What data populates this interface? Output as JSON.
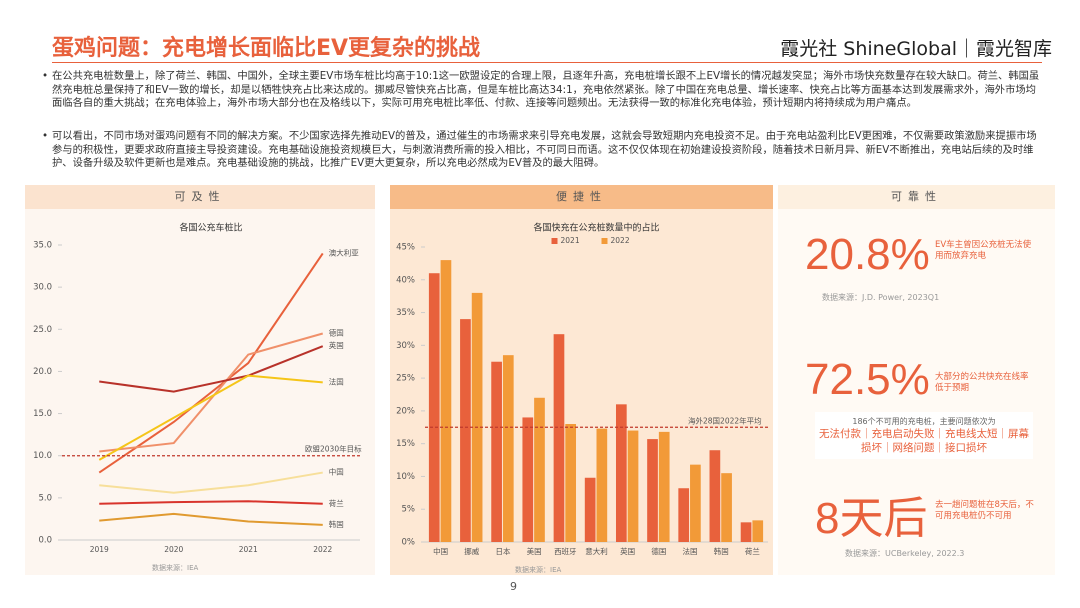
{
  "header": {
    "title": "蛋鸡问题：充电增长面临比EV更复杂的挑战",
    "brand": "霞光社 ShineGlobal｜霞光智库"
  },
  "bullets": [
    "在公共充电桩数量上，除了荷兰、韩国、中国外，全球主要EV市场车桩比均高于10:1这一欧盟设定的合理上限，且逐年升高，充电桩增长跟不上EV增长的情况越发突显；海外市场快充数量存在较大缺口。荷兰、韩国虽然充电桩总量保持了和EV一致的增长，却是以牺牲快充占比来达成的。挪威尽管快充占比高，但是车桩比高达34:1，充电依然紧张。除了中国在充电总量、增长速率、快充占比等方面基本达到发展需求外，海外市场均面临各自的重大挑战；在充电体验上，海外市场大部分也在及格线以下，实际可用充电桩比率低、付款、连接等问题频出。无法获得一致的标准化充电体验，预计短期内将持续成为用户痛点。",
    "可以看出，不同市场对蛋鸡问题有不同的解决方案。不少国家选择先推动EV的普及，通过催生的市场需求来引导充电发展，这就会导致短期内充电投资不足。由于充电站盈利比EV更困难，不仅需要政策激励来提振市场参与的积极性，更要求政府直接主导投资建设。充电基础设施投资规模巨大，与刺激消费所需的投入相比，不可同日而语。这不仅仅体现在初始建设投资阶段，随着技术日新月异、新EV不断推出，充电站后续的及时维护、设备升级及软件更新也是难点。充电基础设施的挑战，比推广EV更大更复杂，所以充电必然成为EV普及的最大阻碍。"
  ],
  "panels": [
    "可及性",
    "便捷性",
    "可靠性"
  ],
  "stats": [
    {
      "value": "20.8%",
      "text": "EV车主曾因公充桩无法使用而放弃充电",
      "source": "数据来源：J.D. Power, 2023Q1"
    },
    {
      "value": "72.5%",
      "text": "大部分的公共快充在线率低于预期",
      "note": "186个不可用的充电桩，主要问题依次为",
      "issues": "无法付款｜充电启动失败｜充电线太短｜屏幕损坏｜网络问题｜接口损坏"
    },
    {
      "value": "8天后",
      "text": "去一趟问题桩在8天后，不可用充电桩仍不可用",
      "source": "数据来源：UCBerkeley, 2022.3"
    }
  ],
  "page": "9",
  "chart_data": [
    {
      "type": "line",
      "title": "各国公充车桩比",
      "categories": [
        "2019",
        "2020",
        "2021",
        "2022"
      ],
      "ylim": [
        0,
        35
      ],
      "yticks": [
        {
          "value": 0,
          "label": "0.0"
        },
        {
          "value": 5,
          "label": "5.0"
        },
        {
          "value": 10,
          "label": "10.0"
        },
        {
          "value": 15,
          "label": "15.0"
        },
        {
          "value": 20,
          "label": "20.0"
        },
        {
          "value": 25,
          "label": "25.0"
        },
        {
          "value": 30,
          "label": "30.0"
        },
        {
          "value": 35,
          "label": "35.0"
        }
      ],
      "series": [
        {
          "name": "澳大利亚",
          "color": "#e8613c",
          "values": [
            8,
            14,
            21,
            34
          ]
        },
        {
          "name": "德国",
          "color": "#f0906a",
          "values": [
            10.5,
            11.5,
            22,
            24.5
          ]
        },
        {
          "name": "英国",
          "color": "#b8322a",
          "values": [
            18.8,
            17.6,
            19.5,
            23
          ]
        },
        {
          "name": "法国",
          "color": "#f5c518",
          "values": [
            9.5,
            14.5,
            19.5,
            18.7
          ]
        },
        {
          "name": "中国",
          "color": "#f7df9a",
          "values": [
            6.5,
            5.6,
            6.5,
            8
          ]
        },
        {
          "name": "荷兰",
          "color": "#d8342c",
          "values": [
            4.3,
            4.5,
            4.6,
            4.3
          ]
        },
        {
          "name": "韩国",
          "color": "#e09a30",
          "values": [
            2.3,
            3.1,
            2.2,
            1.8
          ]
        }
      ],
      "reference": {
        "value": 10,
        "label": "欧盟2030年目标"
      },
      "source": "数据来源：IEA"
    },
    {
      "type": "bar",
      "title": "各国快充在公充桩数量中的占比",
      "categories": [
        "中国",
        "挪威",
        "日本",
        "美国",
        "西班牙",
        "意大利",
        "英国",
        "德国",
        "法国",
        "韩国",
        "荷兰"
      ],
      "ylim": [
        0,
        45
      ],
      "yticks": [
        {
          "value": 0,
          "label": "0%"
        },
        {
          "value": 5,
          "label": "5%"
        },
        {
          "value": 10,
          "label": "10%"
        },
        {
          "value": 15,
          "label": "15%"
        },
        {
          "value": 20,
          "label": "20%"
        },
        {
          "value": 25,
          "label": "25%"
        },
        {
          "value": 30,
          "label": "30%"
        },
        {
          "value": 35,
          "label": "35%"
        },
        {
          "value": 40,
          "label": "40%"
        },
        {
          "value": 45,
          "label": "45%"
        }
      ],
      "series": [
        {
          "name": "2021",
          "color": "#e8613c",
          "values": [
            41,
            34,
            27.5,
            19,
            31.7,
            9.8,
            21,
            15.7,
            8.2,
            14,
            3
          ]
        },
        {
          "name": "2022",
          "color": "#f29a38",
          "values": [
            43,
            38,
            28.5,
            22,
            18,
            17.3,
            17,
            16.8,
            11.8,
            10.5,
            3.3
          ]
        }
      ],
      "reference": {
        "value": 17.5,
        "label": "海外28国2022年平均"
      },
      "source": "数据来源：IEA"
    }
  ]
}
